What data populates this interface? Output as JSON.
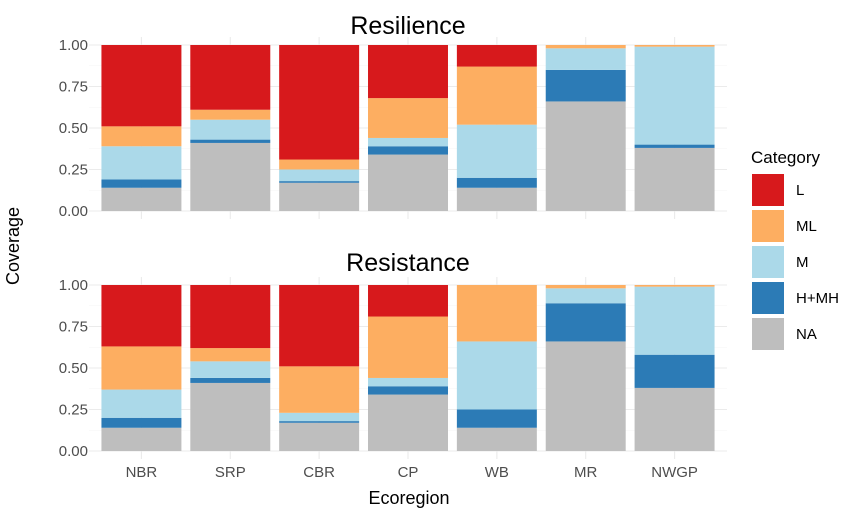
{
  "chart_data": {
    "type": "bar",
    "stacked": true,
    "xlabel": "Ecoregion",
    "ylabel": "Coverage",
    "ylim": [
      0,
      1
    ],
    "yticks": [
      "0.00",
      "0.25",
      "0.50",
      "0.75",
      "1.00"
    ],
    "ytick_values": [
      0,
      0.25,
      0.5,
      0.75,
      1
    ],
    "categories": [
      "NBR",
      "SRP",
      "CBR",
      "CP",
      "WB",
      "MR",
      "NWGP"
    ],
    "legend": {
      "title": "Category",
      "position": "right",
      "entries": [
        {
          "name": "L",
          "color": "#d7191c"
        },
        {
          "name": "ML",
          "color": "#fdae61"
        },
        {
          "name": "M",
          "color": "#abd9e9"
        },
        {
          "name": "H+MH",
          "color": "#2c7bb6"
        },
        {
          "name": "NA",
          "color": "#bebebe"
        }
      ]
    },
    "stack_order_bottom_to_top": [
      "NA",
      "H+MH",
      "M",
      "ML",
      "L"
    ],
    "panels": [
      {
        "title": "Resilience",
        "series": [
          {
            "name": "NA",
            "values": [
              0.14,
              0.41,
              0.17,
              0.34,
              0.14,
              0.66,
              0.38
            ]
          },
          {
            "name": "H+MH",
            "values": [
              0.05,
              0.02,
              0.01,
              0.05,
              0.06,
              0.19,
              0.02
            ]
          },
          {
            "name": "M",
            "values": [
              0.2,
              0.12,
              0.07,
              0.05,
              0.32,
              0.13,
              0.59
            ]
          },
          {
            "name": "ML",
            "values": [
              0.12,
              0.06,
              0.06,
              0.24,
              0.35,
              0.02,
              0.01
            ]
          },
          {
            "name": "L",
            "values": [
              0.49,
              0.39,
              0.69,
              0.32,
              0.13,
              0.0,
              0.0
            ]
          }
        ]
      },
      {
        "title": "Resistance",
        "series": [
          {
            "name": "NA",
            "values": [
              0.14,
              0.41,
              0.17,
              0.34,
              0.14,
              0.66,
              0.38
            ]
          },
          {
            "name": "H+MH",
            "values": [
              0.06,
              0.03,
              0.01,
              0.05,
              0.11,
              0.23,
              0.2
            ]
          },
          {
            "name": "M",
            "values": [
              0.17,
              0.1,
              0.05,
              0.05,
              0.41,
              0.09,
              0.41
            ]
          },
          {
            "name": "ML",
            "values": [
              0.26,
              0.08,
              0.28,
              0.37,
              0.34,
              0.02,
              0.01
            ]
          },
          {
            "name": "L",
            "values": [
              0.37,
              0.38,
              0.49,
              0.19,
              0.0,
              0.0,
              0.0
            ]
          }
        ]
      }
    ]
  }
}
